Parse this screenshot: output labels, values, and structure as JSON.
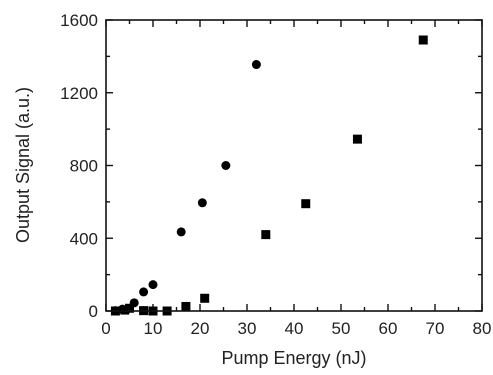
{
  "chart_data": {
    "type": "scatter",
    "title": "",
    "xlabel": "Pump Energy (nJ)",
    "ylabel": "Output Signal (a.u.)",
    "xlim": [
      0,
      80
    ],
    "ylim": [
      0,
      1600
    ],
    "xticks": [
      0,
      10,
      20,
      30,
      40,
      50,
      60,
      70,
      80
    ],
    "yticks": [
      0,
      400,
      800,
      1200,
      1600
    ],
    "xtick_labels": [
      "0",
      "10",
      "20",
      "30",
      "40",
      "50",
      "60",
      "70",
      "80"
    ],
    "ytick_labels": [
      "0",
      "400",
      "800",
      "1200",
      "1600"
    ],
    "grid": false,
    "legend": "none",
    "series": [
      {
        "marker": "circle",
        "color": "#000000",
        "x": [
          2,
          3.5,
          6,
          8,
          10,
          16,
          20.5,
          25.5,
          32
        ],
        "y": [
          2,
          10,
          45,
          105,
          145,
          435,
          595,
          800,
          1355
        ]
      },
      {
        "marker": "square",
        "color": "#000000",
        "x": [
          2,
          4,
          5,
          8,
          10,
          13,
          17,
          21,
          34,
          42.5,
          53.5,
          67.5
        ],
        "y": [
          0,
          5,
          15,
          2,
          0,
          0,
          25,
          70,
          420,
          590,
          945,
          1490
        ]
      }
    ]
  }
}
